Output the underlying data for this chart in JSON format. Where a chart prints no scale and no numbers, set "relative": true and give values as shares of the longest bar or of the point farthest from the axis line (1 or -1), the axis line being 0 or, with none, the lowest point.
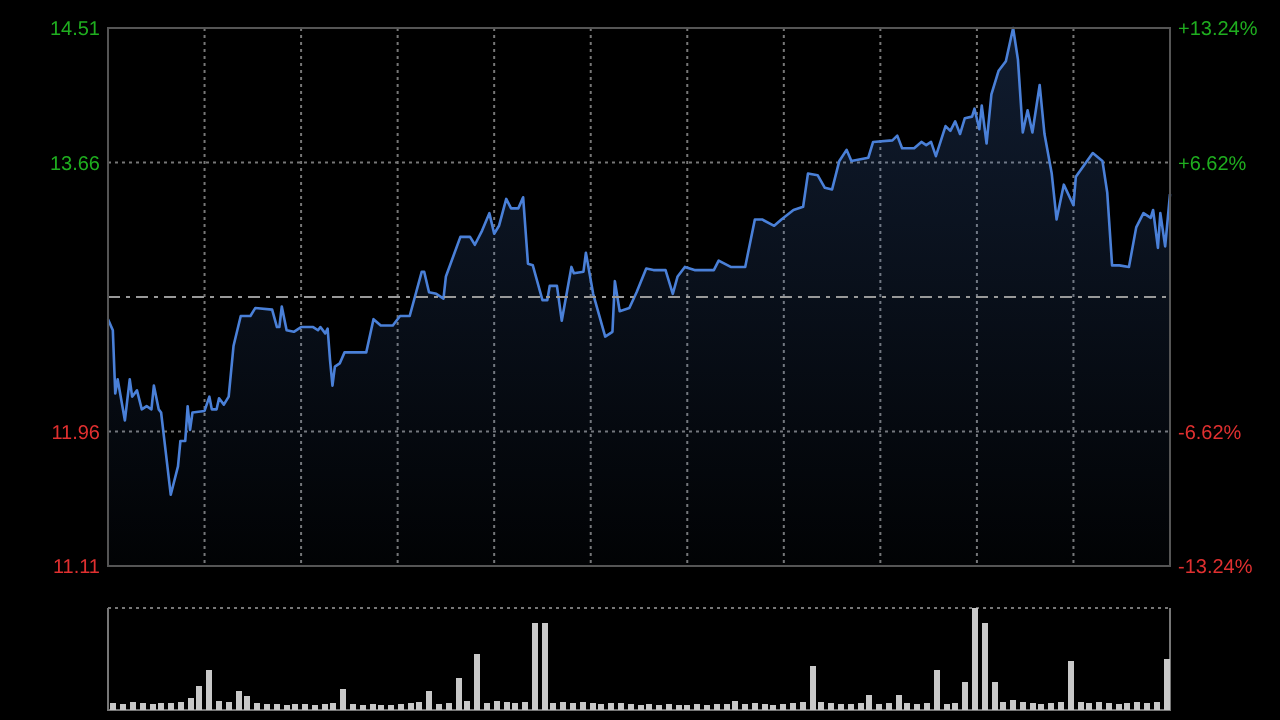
{
  "chart_data": [
    {
      "type": "area",
      "categories": [
        null,
        null,
        null,
        null,
        null,
        null,
        null,
        null,
        null,
        null,
        null,
        null,
        null,
        null,
        null,
        null,
        null,
        null,
        null,
        null,
        null,
        null,
        null,
        null,
        null,
        null,
        null,
        null,
        null,
        null,
        null,
        null,
        null,
        null,
        null,
        null,
        null,
        null,
        null,
        null,
        null,
        null,
        null,
        null,
        null,
        null,
        null,
        null,
        null,
        null,
        null,
        null,
        null,
        null,
        null,
        null,
        null,
        null,
        null,
        null,
        null,
        null,
        null,
        null,
        null,
        null,
        null,
        null,
        null,
        null,
        null,
        null,
        null,
        null,
        null,
        null,
        null,
        null,
        null,
        null,
        null,
        null,
        null,
        null,
        null,
        null,
        null,
        null,
        null,
        null,
        null,
        null,
        null,
        null,
        null,
        null,
        null,
        null,
        null,
        null,
        null,
        null,
        null,
        null,
        null,
        null,
        null,
        null,
        null,
        null,
        null,
        null,
        null,
        null,
        null,
        null,
        null,
        null,
        null,
        null,
        null,
        null,
        null,
        null,
        null,
        null,
        null,
        null,
        null,
        null,
        null,
        null,
        null,
        null,
        null,
        null,
        null,
        null,
        null,
        null,
        null,
        null,
        null,
        null,
        null,
        null,
        null,
        null,
        null,
        null,
        null,
        null,
        null,
        null,
        null,
        null,
        null,
        null,
        null,
        null,
        null,
        null,
        null,
        null,
        null,
        null,
        null,
        null,
        null,
        null,
        null,
        null,
        null,
        null,
        null,
        null,
        null,
        null,
        null,
        null,
        null,
        null,
        null,
        null,
        null,
        null,
        null,
        null,
        null,
        null,
        null,
        null,
        null,
        null,
        null,
        null,
        null,
        null,
        null,
        null,
        null,
        null,
        null,
        null,
        null,
        null,
        null,
        null,
        null,
        null,
        null,
        null,
        null,
        null,
        null,
        null,
        null,
        null,
        null,
        null,
        null,
        null,
        null,
        null,
        null,
        null,
        null,
        null,
        null,
        null,
        null,
        null,
        null,
        null,
        null,
        null,
        null,
        null,
        null,
        null,
        null,
        null,
        null,
        null,
        null,
        null,
        null,
        null,
        null,
        null,
        null,
        null,
        null,
        null,
        null,
        null,
        null,
        null,
        null,
        null,
        null,
        null,
        null,
        null,
        null,
        null,
        null,
        null,
        null,
        null,
        null,
        null,
        null,
        null,
        null,
        null,
        null,
        null,
        null,
        null,
        null,
        null,
        null,
        null,
        null,
        null,
        null,
        null,
        null,
        null,
        null,
        null,
        null,
        null,
        null,
        null,
        null,
        null,
        null,
        null,
        null,
        null,
        null,
        null,
        null,
        null,
        null,
        null,
        null,
        null,
        null,
        null,
        null,
        null,
        null,
        null,
        null,
        null,
        null,
        null,
        null,
        null,
        null,
        null,
        null,
        null,
        null,
        null,
        null,
        null,
        null,
        null,
        null,
        null,
        null,
        null,
        null,
        null,
        null,
        null,
        null,
        null,
        null,
        null,
        null,
        null,
        null,
        null,
        null,
        null,
        null,
        null,
        null,
        null,
        null,
        null,
        null,
        null,
        null,
        null,
        null,
        null,
        null,
        null,
        null,
        null,
        null,
        null,
        null,
        null,
        null,
        null,
        null,
        null,
        null,
        null,
        null,
        null,
        null,
        null,
        null,
        null,
        null,
        null,
        null,
        null,
        null,
        null,
        null,
        null,
        null,
        null,
        null,
        null,
        null,
        null,
        null,
        null,
        null,
        null,
        null,
        null,
        null,
        null,
        null,
        null,
        null,
        null,
        null,
        null,
        null,
        null,
        null,
        null,
        null,
        null,
        null,
        null,
        null,
        null,
        null,
        null,
        null,
        null,
        null,
        null,
        null,
        null,
        null,
        null,
        null,
        null,
        null,
        null,
        null,
        null,
        null,
        null,
        null,
        null,
        null
      ],
      "ylim": [
        11.11,
        14.51
      ],
      "yticks": [
        11.11,
        11.96,
        13.66,
        14.51
      ],
      "y2lim": [
        -13.24,
        13.24
      ],
      "y2ticks": [
        {
          "value": -13.24,
          "label": "-13.24%"
        },
        {
          "value": -6.62,
          "label": "-6.62%"
        },
        {
          "value": 6.62,
          "label": "+6.62%"
        },
        {
          "value": 13.24,
          "label": "+13.24%"
        }
      ],
      "grid": true,
      "ref_lines": [
        {
          "axis": "y",
          "value": 12.81,
          "line_style": "dashed"
        }
      ],
      "series": [
        {
          "color": "#4a80d8",
          "values": [
            12.67,
            null,
            12.6,
            12.2,
            12.29,
            null,
            null,
            12.03,
            null,
            12.29,
            12.18,
            null,
            12.22,
            null,
            12.1,
            null,
            12.12,
            null,
            12.1,
            12.25,
            null,
            12.1,
            12.08,
            null,
            11.82,
            null,
            11.56,
            null,
            null,
            11.74,
            11.9,
            null,
            11.9,
            12.12,
            11.97,
            12.08,
            null,
            null,
            null,
            null,
            12.09,
            null,
            12.18,
            12.1,
            null,
            12.1,
            12.17,
            null,
            12.13,
            null,
            12.18,
            null,
            12.5,
            null,
            null,
            12.69,
            null,
            null,
            null,
            12.69,
            null,
            12.74,
            null,
            null,
            null,
            null,
            null,
            null,
            12.73,
            null,
            12.62,
            12.62,
            12.75,
            null,
            12.6,
            null,
            null,
            12.59,
            null,
            null,
            12.62,
            null,
            null,
            null,
            null,
            12.62,
            null,
            12.6,
            12.62,
            null,
            12.58,
            12.61,
            12.41,
            12.25,
            12.37,
            null,
            12.39,
            null,
            12.46,
            null,
            null,
            null,
            null,
            null,
            null,
            null,
            null,
            12.46,
            null,
            null,
            12.67,
            null,
            null,
            12.63,
            null,
            null,
            null,
            null,
            12.63,
            null,
            null,
            12.69,
            null,
            null,
            null,
            12.69,
            null,
            null,
            null,
            null,
            12.97,
            12.97,
            null,
            12.84,
            null,
            null,
            12.83,
            null,
            null,
            12.8,
            12.94,
            null,
            null,
            null,
            null,
            null,
            13.19,
            null,
            null,
            null,
            13.19,
            null,
            13.14,
            null,
            null,
            13.23,
            null,
            null,
            13.34,
            null,
            13.21,
            null,
            13.26,
            null,
            null,
            13.43,
            null,
            13.37,
            null,
            null,
            13.37,
            null,
            13.44,
            null,
            13.02,
            null,
            13.01,
            null,
            null,
            null,
            12.79,
            null,
            12.79,
            12.88,
            null,
            null,
            12.88,
            null,
            12.66,
            null,
            null,
            null,
            13.0,
            12.96,
            null,
            null,
            null,
            12.97,
            13.09,
            null,
            null,
            12.83,
            null,
            null,
            null,
            null,
            12.56,
            null,
            null,
            12.59,
            12.91,
            null,
            12.72,
            null,
            null,
            null,
            12.74,
            null,
            null,
            12.84,
            null,
            null,
            null,
            12.99,
            null,
            null,
            12.98,
            null,
            null,
            null,
            null,
            12.98,
            null,
            null,
            12.83,
            null,
            12.94,
            null,
            null,
            13.0,
            null,
            null,
            null,
            12.98,
            null,
            null,
            null,
            null,
            null,
            null,
            null,
            12.98,
            null,
            13.04,
            null,
            null,
            null,
            null,
            13.0,
            null,
            null,
            null,
            null,
            null,
            13.0,
            null,
            null,
            null,
            13.3,
            null,
            null,
            13.3,
            null,
            null,
            null,
            null,
            13.26,
            null,
            null,
            13.3,
            null,
            null,
            null,
            null,
            13.36,
            null,
            null,
            null,
            13.38,
            null,
            13.59,
            null,
            null,
            null,
            13.58,
            null,
            null,
            13.5,
            null,
            null,
            13.49,
            null,
            null,
            13.67,
            null,
            null,
            13.74,
            null,
            13.67,
            null,
            null,
            null,
            null,
            null,
            null,
            13.69,
            null,
            13.79,
            null,
            null,
            null,
            null,
            null,
            null,
            null,
            13.8,
            null,
            13.83,
            null,
            13.75,
            null,
            null,
            null,
            null,
            13.75,
            null,
            null,
            13.79,
            null,
            13.77,
            null,
            13.79,
            null,
            13.7,
            null,
            null,
            null,
            13.89,
            null,
            13.86,
            null,
            13.92,
            null,
            13.84,
            null,
            13.94,
            null,
            null,
            13.95,
            14.0,
            null,
            13.87,
            14.02,
            null,
            13.78,
            null,
            14.09,
            null,
            null,
            14.24,
            null,
            null,
            14.3,
            null,
            null,
            14.51,
            null,
            14.31,
            null,
            13.85,
            null,
            13.99,
            null,
            13.85,
            null,
            null,
            14.15,
            null,
            13.84,
            null,
            null,
            13.59,
            null,
            13.3,
            null,
            null,
            13.52,
            null,
            null,
            null,
            13.39,
            13.57,
            null,
            null,
            null,
            null,
            null,
            null,
            13.72,
            null,
            null,
            null,
            13.67,
            null,
            13.47,
            null,
            13.01,
            null,
            null,
            13.01,
            null,
            null,
            null,
            13.0,
            null,
            null,
            13.25,
            null,
            null,
            13.34,
            null,
            null,
            13.31,
            13.36,
            null,
            13.12,
            13.34,
            null,
            13.13,
            null,
            13.46
          ]
        }
      ]
    },
    {
      "type": "bar",
      "relative": true,
      "color": "#c8c8c8",
      "categories": [
        null,
        null,
        null,
        null,
        null,
        null,
        null,
        null,
        null,
        null,
        null,
        null,
        null,
        null,
        null,
        null,
        null,
        null,
        null,
        null,
        null,
        null,
        null,
        null,
        null,
        null,
        null,
        null,
        null,
        null,
        null,
        null,
        null,
        null,
        null,
        null,
        null,
        null,
        null,
        null,
        null,
        null,
        null,
        null,
        null,
        null,
        null,
        null,
        null,
        null,
        null,
        null,
        null,
        null,
        null,
        null,
        null,
        null,
        null,
        null,
        null,
        null,
        null,
        null,
        null,
        null,
        null,
        null,
        null,
        null,
        null,
        null,
        null,
        null,
        null,
        null,
        null,
        null,
        null,
        null,
        null,
        null,
        null,
        null,
        null,
        null,
        null,
        null,
        null,
        null,
        null,
        null,
        null,
        null,
        null,
        null,
        null,
        null,
        null,
        null,
        null,
        null,
        null,
        null,
        null,
        null,
        null,
        null,
        null,
        null,
        null
      ],
      "values": [
        0.07,
        0.06,
        0.08,
        0.07,
        0.06,
        0.07,
        0.07,
        0.08,
        0.12,
        0.24,
        0.39,
        0.09,
        0.08,
        0.19,
        0.14,
        0.07,
        0.06,
        0.06,
        0.05,
        0.06,
        0.06,
        0.05,
        0.06,
        0.07,
        0.21,
        0.06,
        0.05,
        0.06,
        0.05,
        0.05,
        0.06,
        0.07,
        0.08,
        0.19,
        0.06,
        0.07,
        0.31,
        0.09,
        0.55,
        0.07,
        0.09,
        0.08,
        0.07,
        0.08,
        0.85,
        0.85,
        0.07,
        0.08,
        0.07,
        0.08,
        0.07,
        0.06,
        0.07,
        0.07,
        0.06,
        0.05,
        0.06,
        0.05,
        0.06,
        0.05,
        0.05,
        0.06,
        0.05,
        0.06,
        0.06,
        0.09,
        0.06,
        0.07,
        0.06,
        0.05,
        0.06,
        0.07,
        0.08,
        0.43,
        0.08,
        0.07,
        0.06,
        0.06,
        0.07,
        0.15,
        0.06,
        0.07,
        0.15,
        0.07,
        0.06,
        0.07,
        0.39,
        0.06,
        0.07,
        0.27,
        1,
        0.85,
        0.27,
        0.08,
        0.1,
        0.08,
        0.07,
        0.06,
        0.07,
        0.08,
        0.48,
        0.08,
        0.07,
        0.08,
        0.07,
        0.06,
        0.07,
        0.08,
        0.07,
        0.08,
        0.5
      ]
    }
  ]
}
